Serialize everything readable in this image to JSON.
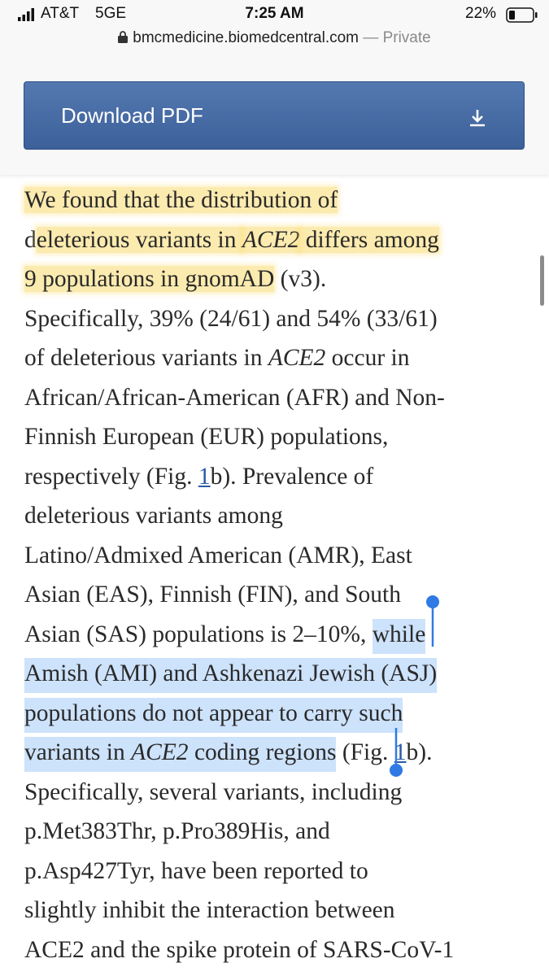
{
  "status_bar": {
    "carrier": "AT&T",
    "network": "5GE",
    "time": "7:25 AM",
    "battery": "22%"
  },
  "url_bar": {
    "domain": "bmcmedicine.biomedcentral.com",
    "mode": "— Private"
  },
  "download_button": {
    "label": "Download PDF"
  },
  "article": {
    "lines": [
      [
        {
          "text": "We found that the distribution of",
          "style": [
            "highlight"
          ]
        }
      ],
      [
        {
          "text": "d"
        },
        {
          "text": "eleterious variants in ",
          "style": [
            "highlight"
          ]
        },
        {
          "text": "ACE2",
          "style": [
            "italic",
            "highlight"
          ]
        },
        {
          "text": " differs among",
          "style": [
            "highlight"
          ]
        }
      ],
      [
        {
          "text": "9 populations in gnomAD",
          "style": [
            "highlight"
          ]
        },
        {
          "text": " (v3)."
        }
      ],
      [
        {
          "text": "Specifically, 39% (24/61) and 54% (33/61)"
        }
      ],
      [
        {
          "text": "of deleterious variants in "
        },
        {
          "text": "ACE2",
          "style": [
            "italic"
          ]
        },
        {
          "text": " occur in"
        }
      ],
      [
        {
          "text": "African/African-American (AFR) and Non-"
        }
      ],
      [
        {
          "text": "Finnish European (EUR) populations,"
        }
      ],
      [
        {
          "text": "respectively (Fig. "
        },
        {
          "text": "1",
          "style": [
            "link"
          ]
        },
        {
          "text": "b). Prevalence of"
        }
      ],
      [
        {
          "text": "deleterious variants among"
        }
      ],
      [
        {
          "text": "Latino/Admixed American (AMR), East"
        }
      ],
      [
        {
          "text": "Asian (EAS), Finnish (FIN), and South"
        }
      ],
      [
        {
          "text": "Asian (SAS) populations is 2–10%, "
        },
        {
          "text": "while",
          "style": [
            "selection"
          ]
        }
      ],
      [
        {
          "text": "Amish (AMI) and Ashkenazi Jewish (ASJ)",
          "style": [
            "selection"
          ]
        }
      ],
      [
        {
          "text": "populations do not appear to carry such",
          "style": [
            "selection"
          ]
        }
      ],
      [
        {
          "text": "variants in ",
          "style": [
            "selection"
          ]
        },
        {
          "text": "ACE2",
          "style": [
            "italic",
            "selection"
          ]
        },
        {
          "text": " coding regions",
          "style": [
            "selection"
          ]
        },
        {
          "text": " (Fig. "
        },
        {
          "text": "1",
          "style": [
            "link"
          ]
        },
        {
          "text": "b)."
        }
      ],
      [
        {
          "text": "Specifically, several variants, including"
        }
      ],
      [
        {
          "text": "p.Met383Thr, p.Pro389His, and"
        }
      ],
      [
        {
          "text": "p.Asp427Tyr, have been reported to"
        }
      ],
      [
        {
          "text": "slightly inhibit the interaction between"
        }
      ],
      [
        {
          "text": "ACE2 and the spike protein of SARS-CoV-1"
        }
      ]
    ]
  }
}
